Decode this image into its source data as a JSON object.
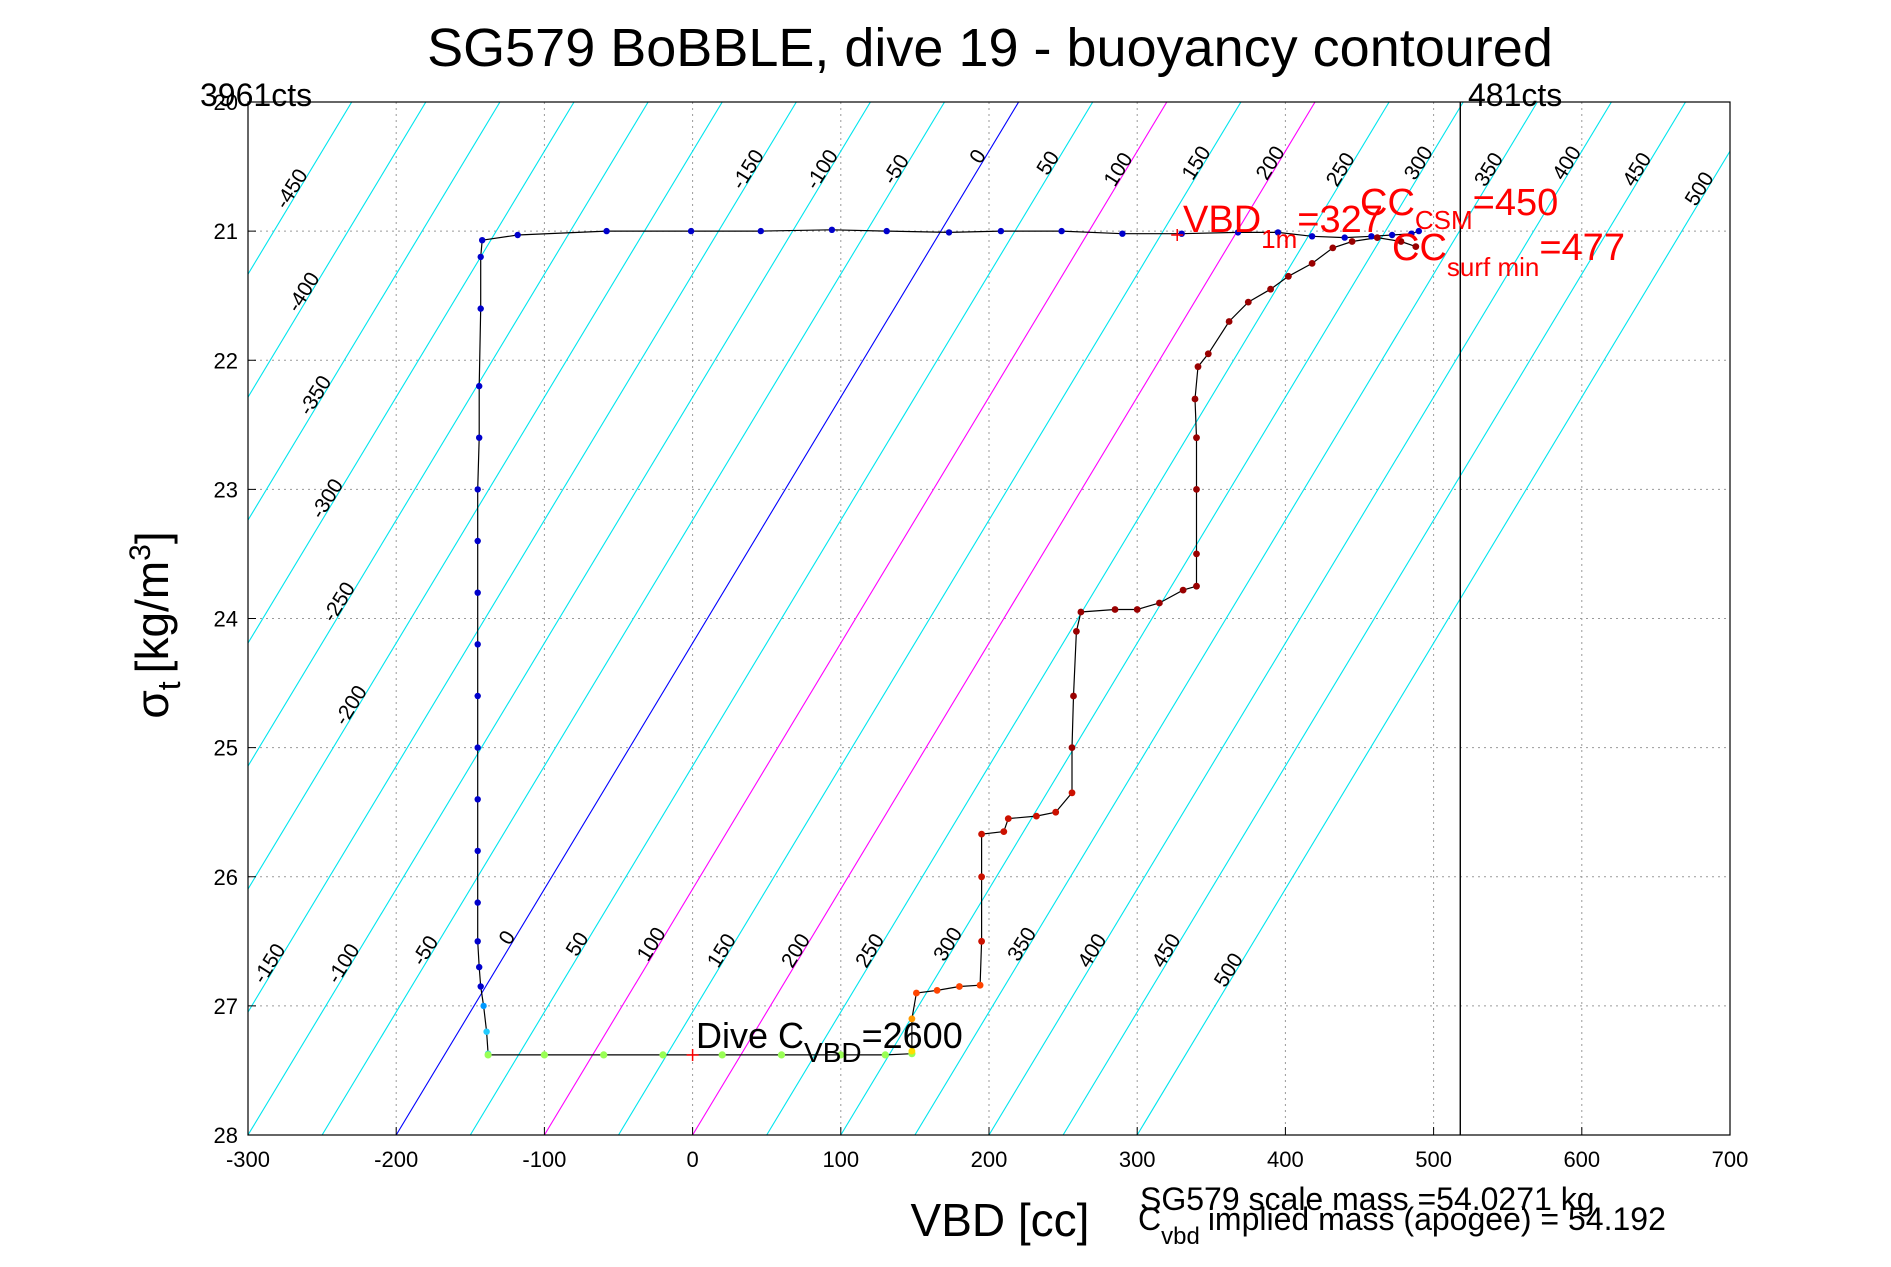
{
  "chart_data": {
    "type": "scatter",
    "title": "SG579 BoBBLE, dive 19 - buoyancy contoured",
    "xlabel": "VBD [cc]",
    "ylabel": {
      "main": "σ",
      "sub": "t",
      "unit_open": "[kg/m",
      "unit_sup": "3",
      "unit_close": "]"
    },
    "xlim": [
      -300,
      700
    ],
    "ylim": [
      28,
      20
    ],
    "y_reversed": true,
    "xticks": [
      -300,
      -200,
      -100,
      0,
      100,
      200,
      300,
      400,
      500,
      600,
      700
    ],
    "yticks": [
      20,
      21,
      22,
      23,
      24,
      25,
      26,
      27,
      28
    ],
    "grid": true,
    "vertical_line_x": 518,
    "corner_labels": {
      "left": "3961cts",
      "right": "481cts"
    },
    "contour_levels": [
      -450,
      -400,
      -350,
      -300,
      -250,
      -200,
      -150,
      -100,
      -50,
      0,
      50,
      100,
      150,
      200,
      250,
      300,
      350,
      400,
      450,
      500
    ],
    "contour_labels_top": [
      {
        "v": -450,
        "y": 20.7
      },
      {
        "v": -400,
        "y": 21.5
      },
      {
        "v": -350,
        "y": 22.3
      },
      {
        "v": -300,
        "y": 23.1
      },
      {
        "v": -250,
        "y": 23.9
      },
      {
        "v": -200,
        "y": 24.7
      },
      {
        "v": -150,
        "y": 20.55
      },
      {
        "v": -100,
        "y": 20.55
      },
      {
        "v": -50,
        "y": 20.55
      },
      {
        "v": 0,
        "y": 20.45
      },
      {
        "v": 50,
        "y": 20.5
      },
      {
        "v": 100,
        "y": 20.55
      },
      {
        "v": 150,
        "y": 20.5
      },
      {
        "v": 200,
        "y": 20.5
      },
      {
        "v": 250,
        "y": 20.55
      },
      {
        "v": 300,
        "y": 20.5
      },
      {
        "v": 350,
        "y": 20.55
      },
      {
        "v": 400,
        "y": 20.5
      },
      {
        "v": 450,
        "y": 20.55
      },
      {
        "v": 500,
        "y": 20.7
      }
    ],
    "contour_labels_bottom": [
      {
        "v": -150,
        "y": 26.7
      },
      {
        "v": -100,
        "y": 26.7
      },
      {
        "v": -50,
        "y": 26.6
      },
      {
        "v": 0,
        "y": 26.5
      },
      {
        "v": 50,
        "y": 26.55
      },
      {
        "v": 100,
        "y": 26.55
      },
      {
        "v": 150,
        "y": 26.6
      },
      {
        "v": 200,
        "y": 26.6
      },
      {
        "v": 250,
        "y": 26.6
      },
      {
        "v": 300,
        "y": 26.55
      },
      {
        "v": 350,
        "y": 26.55
      },
      {
        "v": 400,
        "y": 26.6
      },
      {
        "v": 450,
        "y": 26.6
      },
      {
        "v": 500,
        "y": 26.75
      }
    ],
    "descent_path": [
      [
        -142,
        21.07
      ],
      [
        -118,
        21.03
      ],
      [
        -58,
        21.0
      ],
      [
        -1,
        21.0
      ],
      [
        46,
        21.0
      ],
      [
        94,
        20.99
      ],
      [
        131,
        21.0
      ],
      [
        173,
        21.01
      ],
      [
        208,
        21.0
      ],
      [
        249,
        21.0
      ],
      [
        290,
        21.02
      ],
      [
        330,
        21.02
      ],
      [
        368,
        21.01
      ],
      [
        395,
        21.01
      ],
      [
        418,
        21.04
      ],
      [
        440,
        21.05
      ],
      [
        458,
        21.04
      ],
      [
        472,
        21.03
      ],
      [
        485,
        21.02
      ],
      [
        490,
        21.0
      ],
      [
        -143,
        21.2
      ],
      [
        -143,
        21.6
      ],
      [
        -144,
        22.2
      ],
      [
        -144,
        22.6
      ],
      [
        -145,
        23.0
      ],
      [
        -145,
        23.4
      ],
      [
        -145,
        23.8
      ],
      [
        -145,
        24.2
      ],
      [
        -145,
        24.6
      ],
      [
        -145,
        25.0
      ],
      [
        -145,
        25.4
      ],
      [
        -145,
        25.8
      ],
      [
        -145,
        26.2
      ],
      [
        -145,
        26.5
      ],
      [
        -144,
        26.7
      ],
      [
        -143,
        26.85
      ],
      [
        -141,
        27.0
      ],
      [
        -139,
        27.2
      ],
      [
        -138,
        27.37
      ]
    ],
    "bottom_path": [
      [
        -138,
        27.38
      ],
      [
        -100,
        27.38
      ],
      [
        -60,
        27.38
      ],
      [
        -20,
        27.38
      ],
      [
        20,
        27.38
      ],
      [
        60,
        27.38
      ],
      [
        100,
        27.38
      ],
      [
        130,
        27.38
      ],
      [
        148,
        27.37
      ]
    ],
    "ascent_path": [
      [
        148,
        27.35
      ],
      [
        148,
        27.1
      ],
      [
        151,
        26.9
      ],
      [
        165,
        26.88
      ],
      [
        180,
        26.85
      ],
      [
        194,
        26.84
      ],
      [
        195,
        26.5
      ],
      [
        195,
        26.0
      ],
      [
        195,
        25.67
      ],
      [
        210,
        25.65
      ],
      [
        213,
        25.55
      ],
      [
        232,
        25.53
      ],
      [
        245,
        25.5
      ],
      [
        256,
        25.35
      ],
      [
        256,
        25.0
      ],
      [
        257,
        24.6
      ],
      [
        259,
        24.1
      ],
      [
        262,
        23.95
      ],
      [
        285,
        23.93
      ],
      [
        300,
        23.93
      ],
      [
        315,
        23.88
      ],
      [
        331,
        23.78
      ],
      [
        340,
        23.75
      ],
      [
        340,
        23.5
      ],
      [
        340,
        23.0
      ],
      [
        340,
        22.6
      ],
      [
        339,
        22.3
      ],
      [
        341,
        22.05
      ],
      [
        348,
        21.95
      ],
      [
        362,
        21.7
      ],
      [
        375,
        21.55
      ],
      [
        390,
        21.45
      ],
      [
        402,
        21.35
      ],
      [
        418,
        21.25
      ],
      [
        432,
        21.13
      ],
      [
        445,
        21.08
      ],
      [
        462,
        21.05
      ],
      [
        478,
        21.08
      ],
      [
        488,
        21.12
      ]
    ],
    "annotations": {
      "dive_cvbd": {
        "prefix": "Dive C",
        "sub": "VBD",
        "suffix": "=2600",
        "x": 0,
        "y": 27.38
      },
      "vbd_1m": {
        "prefix": "VBD",
        "sub": "1m",
        "suffix": "=327",
        "x": 327,
        "y": 21.03
      },
      "c_csm": {
        "prefix": "CC",
        "sub": "CSM",
        "suffix": "=450",
        "x": 450,
        "y": 20.85
      },
      "c_surf_min": {
        "prefix": "CC",
        "sub": "surf min",
        "suffix": "=477",
        "x": 477,
        "y": 21.12
      }
    },
    "footer": {
      "scale_mass": "SG579 scale mass =54.0271 kg",
      "implied_prefix": "C",
      "implied_sub": "vbd",
      "implied_text": "implied mass (apogee) = 54.192"
    },
    "colors": {
      "contour": "#00e5ee",
      "zero_contour": "#0000ff",
      "magenta_contour": "#ff00ff",
      "grid": "#9a9a9a",
      "path": "#000000",
      "descent": "#0000cc",
      "bottom": "#99ff55",
      "ascent": "#990000",
      "annotation": "#ff0000"
    }
  }
}
